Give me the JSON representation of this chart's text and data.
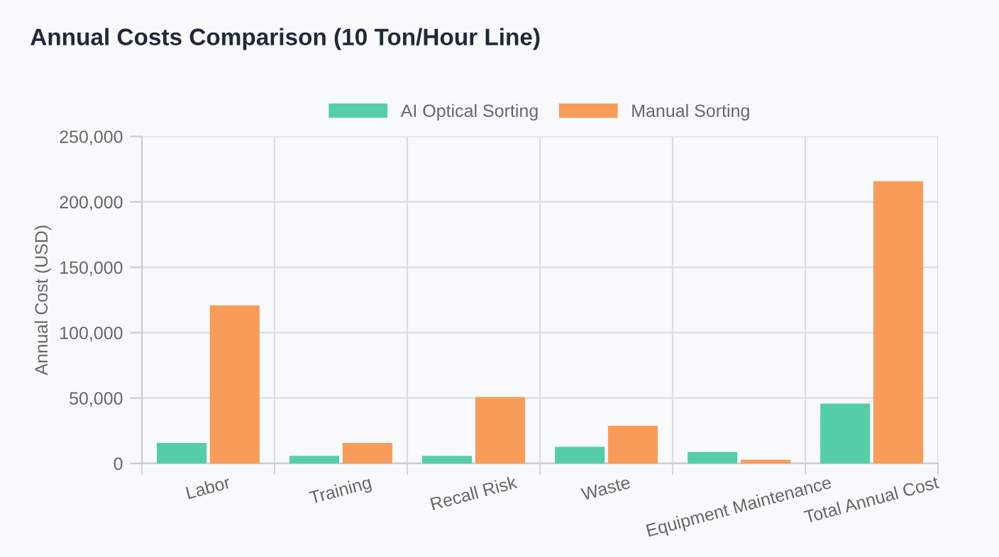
{
  "chart_data": {
    "type": "bar",
    "title": "Annual Costs Comparison (10 Ton/Hour Line)",
    "ylabel": "Annual Cost (USD)",
    "categories": [
      "Labor",
      "Training",
      "Recall Risk",
      "Waste",
      "Equipment Maintenance",
      "Total Annual Cost"
    ],
    "series": [
      {
        "name": "AI Optical Sorting",
        "color": "#55cea8",
        "values": [
          15000,
          5000,
          5000,
          12000,
          8000,
          45000
        ]
      },
      {
        "name": "Manual Sorting",
        "color": "#f99c59",
        "values": [
          120000,
          15000,
          50000,
          28000,
          2000,
          215000
        ]
      }
    ],
    "ylim": [
      0,
      250000
    ],
    "yticks": [
      {
        "value": 0,
        "label": "0"
      },
      {
        "value": 50000,
        "label": "50,000"
      },
      {
        "value": 100000,
        "label": "100,000"
      },
      {
        "value": 150000,
        "label": "150,000"
      },
      {
        "value": 200000,
        "label": "200,000"
      },
      {
        "value": 250000,
        "label": "250,000"
      }
    ],
    "grid": true,
    "legend": "top"
  }
}
